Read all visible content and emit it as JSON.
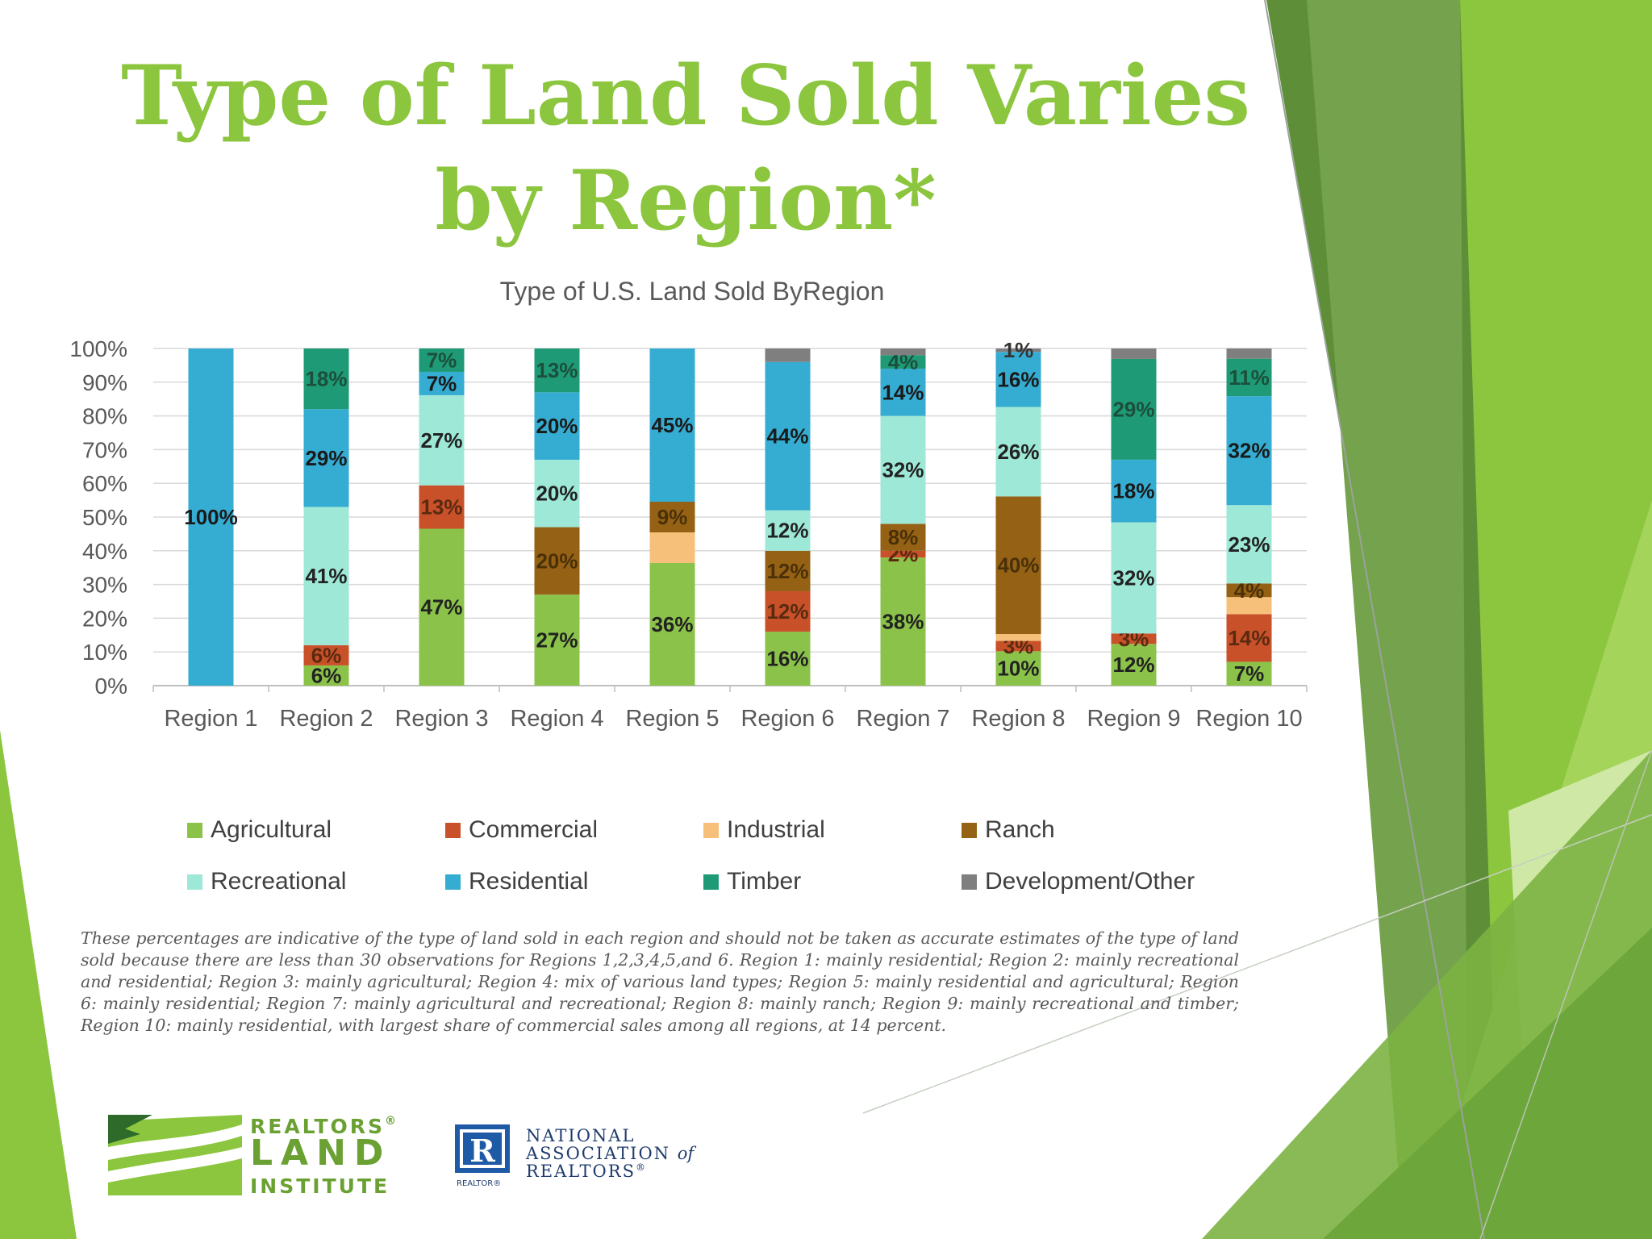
{
  "slide": {
    "title_line1": "Type of Land Sold Varies",
    "title_line2": "by Region*",
    "footnote": "These percentages are indicative of the type of land sold in each region and should not be taken as accurate estimates of the type of land sold because there are less  than 30 observations for Regions 1,2,3,4,5,and 6. Region 1: mainly residential; Region 2: mainly recreational and residential; Region 3: mainly agricultural; Region 4:  mix of various land types; Region 5: mainly residential and agricultural; Region 6: mainly residential; Region 7: mainly agricultural and recreational; Region 8: mainly  ranch; Region 9: mainly recreational and timber; Region 10: mainly residential, with largest share of commercial sales among all regions, at 14 percent."
  },
  "logos": {
    "rli": {
      "line1": "REALTORS",
      "line2": "LAND",
      "line3": "INSTITUTE",
      "reg_mark": "®"
    },
    "nar": {
      "line1": "NATIONAL",
      "line2": "ASSOCIATION",
      "of": "of",
      "line3": "REALTORS",
      "reg_mark": "®",
      "letter": "R",
      "sub": "REALTOR",
      "sub_mark": "®"
    }
  },
  "colors": {
    "brand_green": "#8cc63f",
    "dark_green": "#4e7d2b",
    "nar_blue": "#1f5aa6"
  },
  "chart_data": {
    "type": "bar",
    "stacked": true,
    "title": "Type of U.S. Land Sold ByRegion",
    "categories": [
      "Region 1",
      "Region 2",
      "Region 3",
      "Region 4",
      "Region 5",
      "Region 6",
      "Region 7",
      "Region 8",
      "Region 9",
      "Region 10"
    ],
    "ylim": [
      0,
      100
    ],
    "yticks": [
      "0%",
      "10%",
      "20%",
      "30%",
      "40%",
      "50%",
      "60%",
      "70%",
      "80%",
      "90%",
      "100%"
    ],
    "grid": true,
    "legend_position": "bottom",
    "series": [
      {
        "name": "Agricultural",
        "color": "#8bc34a",
        "label_color": "#222222",
        "values": [
          0,
          6,
          47,
          27,
          36,
          16,
          38,
          10,
          12,
          7
        ],
        "labels": [
          "",
          "6%",
          "47%",
          "27%",
          "36%",
          "16%",
          "38%",
          "10%",
          "12%",
          "7%"
        ]
      },
      {
        "name": "Commercial",
        "color": "#c8512a",
        "label_color": "#5a2a10",
        "values": [
          0,
          6,
          13,
          0,
          0,
          12,
          2,
          3,
          3,
          14
        ],
        "labels": [
          "",
          "6%",
          "13%",
          "",
          "",
          "12%",
          "2%",
          "3%",
          "3%",
          "14%"
        ]
      },
      {
        "name": "Industrial",
        "color": "#f7c07a",
        "label_color": "#222222",
        "values": [
          0,
          0,
          0,
          0,
          9,
          0,
          0,
          2,
          0,
          5
        ],
        "labels": [
          "",
          "",
          "",
          "",
          "",
          "",
          "",
          "",
          "",
          ""
        ]
      },
      {
        "name": "Ranch",
        "color": "#956215",
        "label_color": "#4a3008",
        "values": [
          0,
          0,
          0,
          20,
          9,
          12,
          8,
          40,
          0,
          4
        ],
        "labels": [
          "",
          "",
          "",
          "20%",
          "9%",
          "12%",
          "8%",
          "40%",
          "",
          "4%"
        ]
      },
      {
        "name": "Recreational",
        "color": "#9ee8d7",
        "label_color": "#222222",
        "values": [
          0,
          41,
          27,
          20,
          0,
          12,
          32,
          26,
          32,
          23
        ],
        "labels": [
          "",
          "41%",
          "27%",
          "20%",
          "",
          "12%",
          "32%",
          "26%",
          "32%",
          "23%"
        ]
      },
      {
        "name": "Residential",
        "color": "#35acd2",
        "label_color": "#1a1a1a",
        "values": [
          100,
          29,
          7,
          20,
          45,
          44,
          14,
          16,
          18,
          32
        ],
        "labels": [
          "100%",
          "29%",
          "7%",
          "20%",
          "45%",
          "44%",
          "14%",
          "16%",
          "18%",
          "32%"
        ]
      },
      {
        "name": "Timber",
        "color": "#1f9a76",
        "label_color": "#1b4f3c",
        "values": [
          0,
          18,
          7,
          13,
          0,
          0,
          4,
          0,
          29,
          11
        ],
        "labels": [
          "",
          "18%",
          "7%",
          "13%",
          "",
          "",
          "4%",
          "",
          "29%",
          "11%"
        ]
      },
      {
        "name": "Development/Other",
        "color": "#7f7f7f",
        "label_color": "#333333",
        "values": [
          0,
          0,
          0,
          0,
          0,
          4,
          2,
          1,
          3,
          3
        ],
        "labels": [
          "",
          "",
          "",
          "",
          "",
          "",
          "",
          "1%",
          "",
          ""
        ]
      }
    ]
  }
}
